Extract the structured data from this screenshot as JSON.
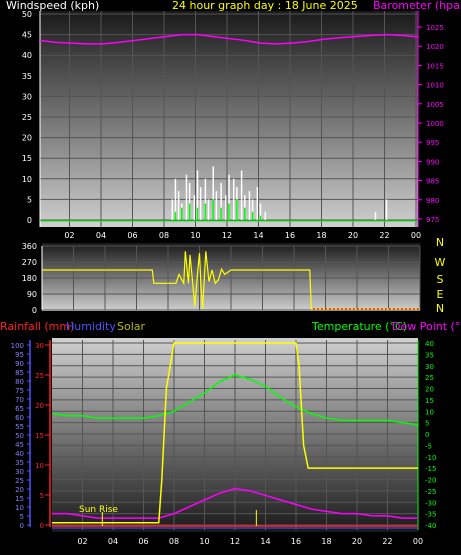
{
  "header": {
    "windspeed_label": "Windspeed (kph)",
    "title": "24 hour graph day : 18 June 2025",
    "barometer_label": "Barometer (hpa)"
  },
  "colors": {
    "windspeed_label": "#ffffff",
    "title": "#ffff00",
    "barometer": "#ff00ff",
    "wind_gust": "#ffffff",
    "wind_avg": "#00ff00",
    "direction": "#ffff00",
    "rain": "#ff2020",
    "humidity": "#5050ff",
    "solar": "#ffff00",
    "temperature": "#00ff00",
    "dewpoint": "#ff00ff"
  },
  "time_ticks": [
    "02",
    "04",
    "06",
    "08",
    "10",
    "12",
    "14",
    "16",
    "18",
    "20",
    "22",
    "00"
  ],
  "compass": [
    "N",
    "W",
    "S",
    "E",
    "N"
  ],
  "bottom_header": {
    "rainfall_label": "Rainfall (mm)",
    "humidity_label": "Humidity",
    "solar_label": "Solar",
    "temperature_label": "Temperature (°C)",
    "dewpoint_label": "Dew Point (°C)"
  },
  "sun_rise_label": "Sun Rise",
  "chart_data": [
    {
      "type": "line",
      "title": "24 hour graph day : 18 June 2025",
      "xlabel": "",
      "x_unit": "hour",
      "x_ticks": [
        "02",
        "04",
        "06",
        "08",
        "10",
        "12",
        "14",
        "16",
        "18",
        "20",
        "22",
        "00"
      ],
      "left_axis": {
        "label": "Windspeed (kph)",
        "ylim": [
          0,
          50
        ],
        "ticks": [
          0,
          5,
          10,
          15,
          20,
          25,
          30,
          35,
          40,
          45,
          50
        ]
      },
      "right_axis": {
        "label": "Barometer (hpa)",
        "ylim": [
          970,
          1030
        ],
        "ticks": [
          975,
          980,
          985,
          990,
          995,
          1000,
          1005,
          1010,
          1015,
          1020,
          1025
        ]
      },
      "series": [
        {
          "name": "Barometer (hpa)",
          "axis": "right",
          "x": [
            0,
            1,
            2,
            3,
            4,
            5,
            6,
            7,
            8,
            9,
            10,
            11,
            12,
            13,
            14,
            15,
            16,
            17,
            18,
            19,
            20,
            21,
            22,
            23,
            24
          ],
          "values": [
            1021.5,
            1021,
            1020.8,
            1020.6,
            1020.6,
            1021,
            1021.5,
            1022,
            1022.5,
            1023,
            1023,
            1022.5,
            1022,
            1021.5,
            1020.8,
            1020.6,
            1020.8,
            1021.2,
            1021.8,
            1022.2,
            1022.5,
            1022.8,
            1023,
            1022.8,
            1022.4
          ]
        },
        {
          "name": "Wind gust (kph)",
          "axis": "left",
          "style": "bars",
          "x": [
            8.4,
            8.6,
            8.8,
            9.0,
            9.3,
            9.5,
            9.8,
            10.0,
            10.2,
            10.5,
            10.7,
            11.0,
            11.2,
            11.5,
            11.8,
            12.0,
            12.3,
            12.5,
            12.8,
            13.0,
            13.3,
            13.5,
            13.8,
            14.0,
            14.3,
            21.3,
            22.0
          ],
          "values": [
            5,
            10,
            7,
            4,
            11,
            9,
            6,
            12,
            8,
            10,
            5,
            13,
            7,
            9,
            6,
            11,
            10,
            8,
            12,
            6,
            7,
            5,
            8,
            4,
            2,
            2,
            5
          ]
        },
        {
          "name": "Wind average (kph)",
          "axis": "left",
          "style": "bars",
          "x": [
            8.6,
            9.0,
            9.5,
            10.0,
            10.5,
            11.0,
            11.5,
            12.0,
            12.5,
            13.0,
            13.5,
            14.0
          ],
          "values": [
            2,
            3,
            4,
            3,
            4,
            5,
            3,
            4,
            5,
            3,
            2,
            1
          ]
        }
      ]
    },
    {
      "type": "line",
      "title": "",
      "xlabel": "",
      "ylabel": "",
      "ylim": [
        0,
        360
      ],
      "y_ticks": [
        0,
        90,
        180,
        270,
        360
      ],
      "compass_labels": [
        "N",
        "W",
        "S",
        "E",
        "N"
      ],
      "series": [
        {
          "name": "Wind direction (deg)",
          "x": [
            0,
            7.0,
            7.1,
            8.5,
            8.7,
            9.0,
            9.1,
            9.3,
            9.4,
            9.6,
            9.7,
            9.9,
            10.0,
            10.1,
            10.2,
            10.4,
            10.6,
            10.8,
            11.0,
            11.2,
            11.4,
            11.6,
            12.0,
            14.5,
            14.6,
            17.0,
            17.1,
            24
          ],
          "values": [
            225,
            225,
            150,
            150,
            200,
            150,
            330,
            150,
            310,
            120,
            20,
            230,
            320,
            120,
            5,
            330,
            160,
            225,
            150,
            170,
            230,
            200,
            225,
            225,
            225,
            225,
            5,
            5
          ]
        }
      ]
    },
    {
      "type": "line",
      "title": "",
      "xlabel": "",
      "left_axis_humidity": {
        "label": "Humidity",
        "ylim": [
          0,
          100
        ],
        "ticks": [
          0,
          5,
          10,
          15,
          20,
          25,
          30,
          35,
          40,
          45,
          50,
          55,
          60,
          65,
          70,
          75,
          80,
          85,
          90,
          95,
          100
        ]
      },
      "left_axis_rain": {
        "label": "Rainfall (mm)",
        "ylim": [
          0,
          30
        ],
        "ticks": [
          0,
          5,
          10,
          15,
          20,
          25,
          30
        ]
      },
      "right_axis": {
        "label": "Temperature (°C) / Dew Point (°C)",
        "ylim": [
          -40,
          40
        ],
        "ticks": [
          40,
          35,
          30,
          25,
          20,
          15,
          10,
          5,
          0,
          -5,
          -10,
          -15,
          -20,
          -25,
          -30,
          -35,
          -40
        ]
      },
      "annotations": [
        "Sun Rise"
      ],
      "series": [
        {
          "name": "Temperature (°C)",
          "axis": "right",
          "x": [
            0,
            1,
            2,
            3,
            4,
            5,
            6,
            7,
            8,
            9,
            10,
            11,
            12,
            13,
            14,
            15,
            16,
            17,
            18,
            19,
            20,
            21,
            22,
            23,
            24
          ],
          "values": [
            9,
            8,
            8,
            7,
            7,
            7,
            7,
            8,
            10,
            14,
            18,
            23,
            26,
            24,
            21,
            16,
            12,
            9,
            7,
            6,
            6,
            6,
            6,
            5,
            4
          ]
        },
        {
          "name": "Dew Point (°C)",
          "axis": "right",
          "x": [
            0,
            1,
            2,
            3,
            4,
            5,
            6,
            7,
            8,
            9,
            10,
            11,
            12,
            13,
            14,
            15,
            16,
            17,
            18,
            19,
            20,
            21,
            22,
            23,
            24
          ],
          "values": [
            -35,
            -35,
            -36,
            -37,
            -37,
            -37,
            -37,
            -37,
            -35,
            -32,
            -29,
            -26,
            -24,
            -25,
            -27,
            -29,
            -31,
            -33,
            -34,
            -35,
            -35,
            -36,
            -36,
            -37,
            -37
          ]
        },
        {
          "name": "Solar",
          "axis": "right",
          "note": "plotted on temperature scale",
          "x": [
            0,
            7.0,
            7.2,
            7.5,
            8.0,
            8.5,
            16.0,
            16.2,
            16.5,
            16.8,
            17.0,
            24
          ],
          "values": [
            -39,
            -39,
            -20,
            20,
            40,
            40,
            40,
            30,
            -5,
            -15,
            -15,
            -15
          ]
        },
        {
          "name": "Rainfall (mm)",
          "axis": "rain",
          "x": [
            0,
            24
          ],
          "values": [
            0,
            0
          ]
        },
        {
          "name": "Humidity",
          "axis": "humidity",
          "x": [
            0,
            24
          ],
          "values": [
            0,
            0
          ]
        }
      ]
    }
  ]
}
